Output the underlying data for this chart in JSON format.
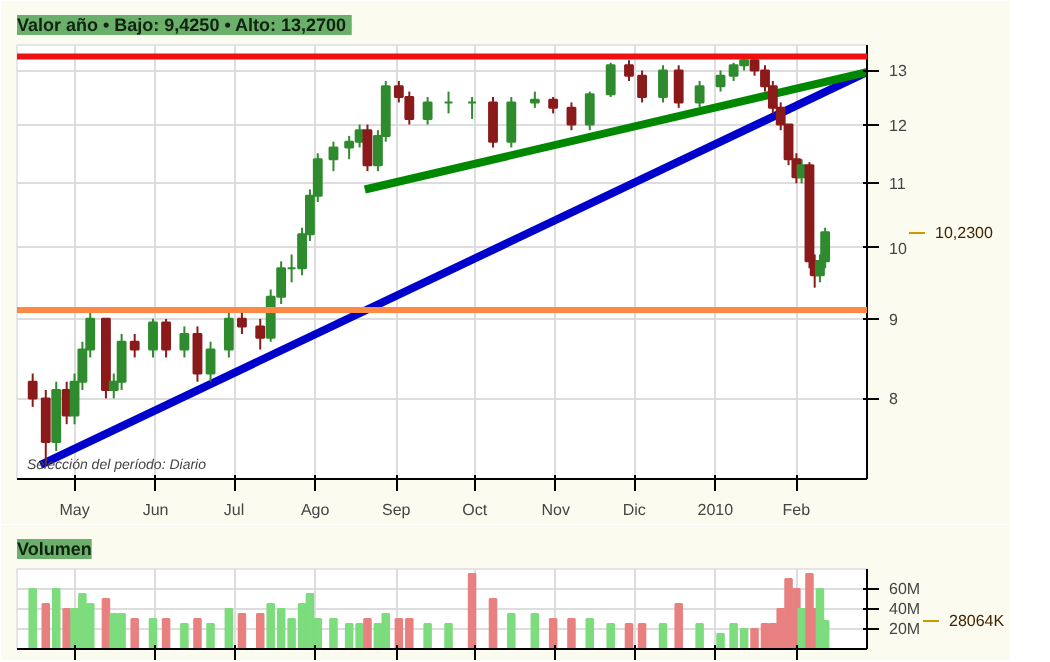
{
  "chart_data": [
    {
      "type": "candlestick",
      "title": "Valor  año • Bajo: 9,4250 • Alto: 13,2700",
      "x": [
        "2009-04-15",
        "2009-04-20",
        "2009-04-24",
        "2009-04-28",
        "2009-05-01",
        "2009-05-04",
        "2009-05-07",
        "2009-05-13",
        "2009-05-16",
        "2009-05-19",
        "2009-05-24",
        "2009-05-31",
        "2009-06-05",
        "2009-06-12",
        "2009-06-17",
        "2009-06-22",
        "2009-06-29",
        "2009-07-04",
        "2009-07-11",
        "2009-07-15",
        "2009-07-19",
        "2009-07-23",
        "2009-07-27",
        "2009-07-30",
        "2009-08-02",
        "2009-08-08",
        "2009-08-14",
        "2009-08-18",
        "2009-08-21",
        "2009-08-25",
        "2009-08-28",
        "2009-09-02",
        "2009-09-06",
        "2009-09-13",
        "2009-09-21",
        "2009-09-30",
        "2009-10-08",
        "2009-10-15",
        "2009-10-24",
        "2009-10-31",
        "2009-11-07",
        "2009-11-14",
        "2009-11-22",
        "2009-11-29",
        "2009-12-04",
        "2009-12-12",
        "2009-12-18",
        "2009-12-26",
        "2010-01-03",
        "2010-01-08",
        "2010-01-12",
        "2010-01-16",
        "2010-01-20",
        "2010-01-23",
        "2010-01-26",
        "2010-01-29",
        "2010-02-01",
        "2010-02-03",
        "2010-02-06",
        "2010-02-08",
        "2010-02-10",
        "2010-02-12"
      ],
      "ohlc": [
        [
          8.2,
          8.3,
          7.9,
          8.0
        ],
        [
          8.0,
          8.1,
          7.25,
          7.5
        ],
        [
          7.5,
          8.2,
          7.4,
          8.1
        ],
        [
          8.1,
          8.2,
          7.7,
          7.8
        ],
        [
          7.8,
          8.3,
          7.7,
          8.2
        ],
        [
          8.2,
          8.7,
          8.1,
          8.6
        ],
        [
          8.6,
          9.1,
          8.5,
          9.0
        ],
        [
          9.0,
          9.0,
          8.0,
          8.1
        ],
        [
          8.1,
          8.3,
          8.0,
          8.2
        ],
        [
          8.2,
          8.8,
          8.1,
          8.7
        ],
        [
          8.7,
          8.8,
          8.5,
          8.6
        ],
        [
          8.6,
          9.0,
          8.5,
          8.95
        ],
        [
          8.95,
          9.0,
          8.5,
          8.6
        ],
        [
          8.6,
          8.9,
          8.5,
          8.8
        ],
        [
          8.8,
          8.9,
          8.2,
          8.3
        ],
        [
          8.3,
          8.7,
          8.2,
          8.6
        ],
        [
          8.6,
          9.1,
          8.5,
          9.0
        ],
        [
          9.0,
          9.1,
          8.8,
          8.9
        ],
        [
          8.9,
          9.0,
          8.6,
          8.75
        ],
        [
          8.75,
          9.4,
          8.7,
          9.3
        ],
        [
          9.3,
          9.8,
          9.2,
          9.7
        ],
        [
          9.7,
          9.9,
          9.5,
          9.7
        ],
        [
          9.7,
          10.3,
          9.6,
          10.2
        ],
        [
          10.2,
          10.9,
          10.1,
          10.8
        ],
        [
          10.8,
          11.5,
          10.7,
          11.4
        ],
        [
          11.4,
          11.7,
          11.2,
          11.6
        ],
        [
          11.6,
          11.8,
          11.4,
          11.7
        ],
        [
          11.7,
          12.0,
          11.6,
          11.9
        ],
        [
          11.9,
          12.0,
          11.2,
          11.3
        ],
        [
          11.3,
          11.9,
          11.2,
          11.8
        ],
        [
          11.8,
          12.8,
          11.7,
          12.7
        ],
        [
          12.7,
          12.8,
          12.4,
          12.5
        ],
        [
          12.5,
          12.6,
          12.0,
          12.1
        ],
        [
          12.1,
          12.5,
          12.0,
          12.4
        ],
        [
          12.4,
          12.6,
          12.2,
          12.4
        ],
        [
          12.4,
          12.5,
          12.1,
          12.4
        ],
        [
          12.4,
          12.5,
          11.6,
          11.7
        ],
        [
          11.7,
          12.5,
          11.6,
          12.4
        ],
        [
          12.4,
          12.6,
          12.3,
          12.45
        ],
        [
          12.45,
          12.5,
          12.2,
          12.3
        ],
        [
          12.3,
          12.4,
          11.9,
          12.0
        ],
        [
          12.0,
          12.6,
          11.9,
          12.55
        ],
        [
          12.55,
          13.15,
          12.5,
          13.1
        ],
        [
          13.1,
          13.2,
          12.8,
          12.9
        ],
        [
          12.9,
          13.0,
          12.4,
          12.5
        ],
        [
          12.5,
          13.1,
          12.4,
          13.0
        ],
        [
          13.0,
          13.1,
          12.3,
          12.4
        ],
        [
          12.4,
          12.8,
          12.3,
          12.7
        ],
        [
          12.7,
          13.0,
          12.6,
          12.9
        ],
        [
          12.9,
          13.15,
          12.8,
          13.1
        ],
        [
          13.1,
          13.27,
          13.0,
          13.2
        ],
        [
          13.2,
          13.25,
          12.9,
          13.0
        ],
        [
          13.0,
          13.1,
          12.6,
          12.7
        ],
        [
          12.7,
          12.8,
          12.2,
          12.3
        ],
        [
          12.3,
          12.4,
          11.9,
          12.0
        ],
        [
          12.0,
          12.0,
          11.3,
          11.4
        ],
        [
          11.4,
          11.5,
          11.0,
          11.1
        ],
        [
          11.1,
          11.4,
          11.0,
          11.3
        ],
        [
          11.3,
          11.35,
          9.7,
          9.8
        ],
        [
          9.8,
          9.9,
          9.425,
          9.6
        ],
        [
          9.6,
          9.9,
          9.5,
          9.8
        ],
        [
          9.8,
          10.3,
          9.7,
          10.23
        ]
      ],
      "colors": [
        "#8b1a1a",
        "#8b1a1a",
        "#2e8b2e",
        "#8b1a1a",
        "#2e8b2e",
        "#2e8b2e",
        "#2e8b2e",
        "#8b1a1a",
        "#2e8b2e",
        "#2e8b2e",
        "#8b1a1a",
        "#2e8b2e",
        "#8b1a1a",
        "#2e8b2e",
        "#8b1a1a",
        "#2e8b2e",
        "#2e8b2e",
        "#8b1a1a",
        "#8b1a1a",
        "#2e8b2e",
        "#2e8b2e",
        "#2e8b2e",
        "#2e8b2e",
        "#2e8b2e",
        "#2e8b2e",
        "#2e8b2e",
        "#2e8b2e",
        "#2e8b2e",
        "#8b1a1a",
        "#2e8b2e",
        "#2e8b2e",
        "#8b1a1a",
        "#8b1a1a",
        "#2e8b2e",
        "#2e8b2e",
        "#2e8b2e",
        "#8b1a1a",
        "#2e8b2e",
        "#2e8b2e",
        "#8b1a1a",
        "#8b1a1a",
        "#2e8b2e",
        "#2e8b2e",
        "#8b1a1a",
        "#8b1a1a",
        "#2e8b2e",
        "#8b1a1a",
        "#2e8b2e",
        "#2e8b2e",
        "#2e8b2e",
        "#2e8b2e",
        "#8b1a1a",
        "#8b1a1a",
        "#8b1a1a",
        "#8b1a1a",
        "#8b1a1a",
        "#8b1a1a",
        "#2e8b2e",
        "#8b1a1a",
        "#8b1a1a",
        "#2e8b2e",
        "#2e8b2e"
      ],
      "series": [
        {
          "type": "line",
          "x": [
            "2009-04-18",
            "2010-02-28"
          ],
          "values": [
            7.25,
            12.97
          ],
          "color": "#0000cc"
        },
        {
          "type": "line",
          "x": [
            "2009-08-20",
            "2010-02-28"
          ],
          "values": [
            10.9,
            12.97
          ],
          "color": "#008800"
        }
      ],
      "ref_lines": [
        {
          "axis": "y",
          "value": 13.27,
          "color": "#ee1111"
        },
        {
          "axis": "y",
          "value": 9.12,
          "color": "#ff8844"
        }
      ],
      "xlim": [
        "2009-04-09",
        "2010-02-28"
      ],
      "xticks": [
        {
          "value": "2009-05-01",
          "label": "May"
        },
        {
          "value": "2009-06-01",
          "label": "Jun"
        },
        {
          "value": "2009-07-01",
          "label": "Jul"
        },
        {
          "value": "2009-08-01",
          "label": "Ago"
        },
        {
          "value": "2009-09-01",
          "label": "Sep"
        },
        {
          "value": "2009-10-01",
          "label": "Oct"
        },
        {
          "value": "2009-11-01",
          "label": "Nov"
        },
        {
          "value": "2009-12-01",
          "label": "Dic"
        },
        {
          "value": "2010-01-01",
          "label": "2010"
        },
        {
          "value": "2010-02-01",
          "label": "Feb"
        }
      ],
      "ylim": [
        7.1,
        13.5
      ],
      "yticks": [
        8,
        9,
        10,
        11,
        12,
        13
      ],
      "log": true,
      "grid": true,
      "annotations": [
        "Selección del período: Diario",
        "10,2300"
      ]
    },
    {
      "type": "bar",
      "title": "Volumen",
      "x": [
        "2009-04-15",
        "2009-04-20",
        "2009-04-24",
        "2009-04-28",
        "2009-05-01",
        "2009-05-04",
        "2009-05-07",
        "2009-05-13",
        "2009-05-16",
        "2009-05-19",
        "2009-05-24",
        "2009-05-31",
        "2009-06-05",
        "2009-06-12",
        "2009-06-17",
        "2009-06-22",
        "2009-06-29",
        "2009-07-04",
        "2009-07-11",
        "2009-07-15",
        "2009-07-19",
        "2009-07-23",
        "2009-07-27",
        "2009-07-30",
        "2009-08-02",
        "2009-08-08",
        "2009-08-14",
        "2009-08-18",
        "2009-08-21",
        "2009-08-25",
        "2009-08-28",
        "2009-09-02",
        "2009-09-06",
        "2009-09-13",
        "2009-09-21",
        "2009-09-30",
        "2009-10-08",
        "2009-10-15",
        "2009-10-24",
        "2009-10-31",
        "2009-11-07",
        "2009-11-14",
        "2009-11-22",
        "2009-11-29",
        "2009-12-04",
        "2009-12-12",
        "2009-12-18",
        "2009-12-26",
        "2010-01-03",
        "2010-01-08",
        "2010-01-12",
        "2010-01-16",
        "2010-01-20",
        "2010-01-23",
        "2010-01-26",
        "2010-01-29",
        "2010-02-01",
        "2010-02-03",
        "2010-02-06",
        "2010-02-08",
        "2010-02-10",
        "2010-02-12"
      ],
      "values": [
        60,
        45,
        60,
        40,
        40,
        55,
        45,
        50,
        35,
        35,
        30,
        30,
        30,
        25,
        30,
        25,
        40,
        35,
        35,
        45,
        40,
        30,
        45,
        55,
        30,
        30,
        25,
        25,
        30,
        25,
        35,
        30,
        30,
        25,
        25,
        75,
        50,
        35,
        35,
        30,
        30,
        30,
        25,
        25,
        25,
        25,
        45,
        25,
        15,
        25,
        20,
        20,
        25,
        25,
        40,
        70,
        60,
        40,
        75,
        40,
        60,
        28
      ],
      "colors": [
        "#7ddc7d",
        "#e88080",
        "#7ddc7d",
        "#e88080",
        "#7ddc7d",
        "#7ddc7d",
        "#7ddc7d",
        "#e88080",
        "#7ddc7d",
        "#7ddc7d",
        "#e88080",
        "#7ddc7d",
        "#e88080",
        "#7ddc7d",
        "#e88080",
        "#7ddc7d",
        "#7ddc7d",
        "#e88080",
        "#e88080",
        "#7ddc7d",
        "#7ddc7d",
        "#7ddc7d",
        "#7ddc7d",
        "#7ddc7d",
        "#7ddc7d",
        "#7ddc7d",
        "#7ddc7d",
        "#7ddc7d",
        "#e88080",
        "#7ddc7d",
        "#7ddc7d",
        "#e88080",
        "#e88080",
        "#7ddc7d",
        "#7ddc7d",
        "#e88080",
        "#e88080",
        "#7ddc7d",
        "#7ddc7d",
        "#e88080",
        "#e88080",
        "#7ddc7d",
        "#7ddc7d",
        "#e88080",
        "#e88080",
        "#7ddc7d",
        "#e88080",
        "#7ddc7d",
        "#7ddc7d",
        "#7ddc7d",
        "#7ddc7d",
        "#e88080",
        "#e88080",
        "#e88080",
        "#e88080",
        "#e88080",
        "#e88080",
        "#7ddc7d",
        "#e88080",
        "#e88080",
        "#7ddc7d",
        "#7ddc7d"
      ],
      "xlim": [
        "2009-04-09",
        "2010-02-28"
      ],
      "xticks": [
        {
          "value": "2009-05-01",
          "label": null
        },
        {
          "value": "2009-06-01",
          "label": null
        },
        {
          "value": "2009-07-01",
          "label": null
        },
        {
          "value": "2009-08-01",
          "label": null
        },
        {
          "value": "2009-09-01",
          "label": null
        },
        {
          "value": "2009-10-01",
          "label": null
        },
        {
          "value": "2009-11-01",
          "label": null
        },
        {
          "value": "2009-12-01",
          "label": null
        },
        {
          "value": "2010-01-01",
          "label": null
        },
        {
          "value": "2010-02-01",
          "label": null
        }
      ],
      "ylim": [
        0,
        80
      ],
      "yticks": [
        {
          "value": 20,
          "label": "20M"
        },
        {
          "value": 40,
          "label": "40M"
        },
        {
          "value": 60,
          "label": "60M"
        }
      ],
      "tick_labels": "y",
      "grid": true,
      "annotations": [
        "28064K"
      ]
    }
  ]
}
